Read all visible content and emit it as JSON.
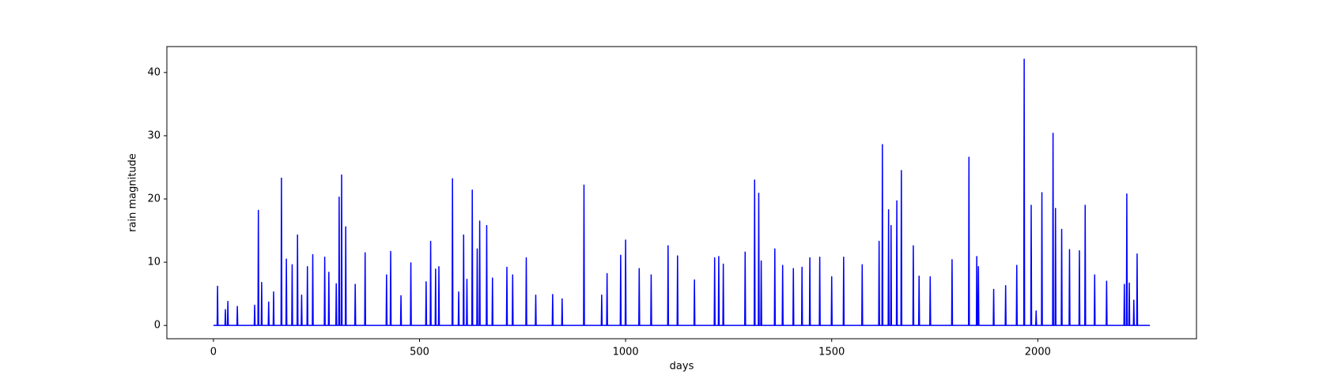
{
  "chart_data": {
    "type": "line",
    "xlabel": "days",
    "ylabel": "rain magnitude",
    "xlim": [
      -113,
      2385
    ],
    "ylim": [
      -2.1,
      44.1
    ],
    "xticks": [
      0,
      500,
      1000,
      1500,
      2000
    ],
    "yticks": [
      0,
      10,
      20,
      30,
      40
    ],
    "series": [
      {
        "color": "#0000ff",
        "x": [
          0,
          9,
          10,
          11,
          28,
          29,
          30,
          34,
          35,
          36,
          57,
          58,
          59,
          99,
          100,
          101,
          108,
          109,
          110,
          116,
          117,
          118,
          133,
          134,
          135,
          145,
          146,
          147,
          164,
          165,
          166,
          176,
          177,
          178,
          190,
          191,
          192,
          203,
          204,
          205,
          213,
          214,
          215,
          227,
          228,
          229,
          240,
          241,
          242,
          269,
          270,
          271,
          279,
          280,
          281,
          297,
          298,
          299,
          304,
          305,
          306,
          310,
          311,
          312,
          320,
          321,
          322,
          343,
          344,
          345,
          367,
          368,
          369,
          419,
          420,
          421,
          429,
          430,
          431,
          454,
          455,
          456,
          478,
          479,
          480,
          515,
          516,
          517,
          526,
          527,
          528,
          538,
          539,
          540,
          546,
          547,
          548,
          579,
          580,
          581,
          594,
          595,
          596,
          606,
          607,
          608,
          614,
          615,
          616,
          627,
          628,
          629,
          639,
          640,
          641,
          645,
          646,
          647,
          662,
          663,
          664,
          676,
          677,
          678,
          711,
          712,
          713,
          725,
          726,
          727,
          758,
          759,
          760,
          781,
          782,
          783,
          822,
          823,
          824,
          845,
          846,
          847,
          898,
          899,
          900,
          941,
          942,
          943,
          954,
          955,
          956,
          987,
          988,
          989,
          999,
          1000,
          1001,
          1032,
          1033,
          1034,
          1061,
          1062,
          1063,
          1102,
          1103,
          1104,
          1125,
          1126,
          1127,
          1166,
          1167,
          1168,
          1215,
          1216,
          1217,
          1225,
          1226,
          1227,
          1236,
          1237,
          1238,
          1289,
          1290,
          1291,
          1312,
          1313,
          1314,
          1322,
          1323,
          1324,
          1328,
          1329,
          1330,
          1361,
          1362,
          1363,
          1380,
          1381,
          1382,
          1406,
          1407,
          1408,
          1427,
          1428,
          1429,
          1446,
          1447,
          1448,
          1470,
          1471,
          1472,
          1499,
          1500,
          1501,
          1528,
          1529,
          1530,
          1573,
          1574,
          1575,
          1614,
          1615,
          1616,
          1622,
          1623,
          1624,
          1637,
          1638,
          1639,
          1643,
          1644,
          1645,
          1657,
          1658,
          1659,
          1668,
          1669,
          1670,
          1697,
          1698,
          1699,
          1711,
          1712,
          1713,
          1738,
          1739,
          1740,
          1791,
          1792,
          1793,
          1832,
          1833,
          1834,
          1851,
          1852,
          1853,
          1855,
          1856,
          1857,
          1892,
          1893,
          1894,
          1921,
          1922,
          1923,
          1948,
          1949,
          1950,
          1966,
          1967,
          1968,
          1983,
          1984,
          1985,
          1995,
          1996,
          1997,
          2009,
          2010,
          2011,
          2036,
          2037,
          2038,
          2042,
          2043,
          2044,
          2057,
          2058,
          2059,
          2076,
          2077,
          2078,
          2100,
          2101,
          2102,
          2114,
          2115,
          2116,
          2137,
          2138,
          2139,
          2166,
          2167,
          2168,
          2209,
          2210,
          2211,
          2215,
          2216,
          2217,
          2221,
          2222,
          2223,
          2232,
          2233,
          2234,
          2240,
          2241,
          2242,
          2272
        ],
        "values": [
          0,
          0,
          6.2,
          0,
          0,
          2.5,
          0,
          0,
          3.8,
          0,
          0,
          3,
          0,
          0,
          3.2,
          0,
          0,
          18.2,
          0,
          0,
          6.8,
          0,
          0,
          3.7,
          0,
          0,
          5.3,
          0,
          0,
          23.3,
          0,
          0,
          10.5,
          0,
          0,
          9.6,
          0,
          0,
          14.3,
          0,
          0,
          4.8,
          0,
          0,
          9.3,
          0,
          0,
          11.2,
          0,
          0,
          10.8,
          0,
          0,
          8.4,
          0,
          0,
          6.6,
          0,
          0,
          20.3,
          0,
          0,
          23.8,
          0,
          0,
          15.6,
          0,
          0,
          6.5,
          0,
          0,
          11.5,
          0,
          0,
          8,
          0,
          0,
          11.7,
          0,
          0,
          4.7,
          0,
          0,
          9.9,
          0,
          0,
          6.9,
          0,
          0,
          13.3,
          0,
          0,
          8.9,
          0,
          0,
          9.3,
          0,
          0,
          23.2,
          0,
          0,
          5.3,
          0,
          0,
          14.3,
          0,
          0,
          7.3,
          0,
          0,
          21.4,
          0,
          0,
          12.1,
          0,
          0,
          16.5,
          0,
          0,
          15.8,
          0,
          0,
          7.5,
          0,
          0,
          9.2,
          0,
          0,
          8,
          0,
          0,
          10.7,
          0,
          0,
          4.8,
          0,
          0,
          4.9,
          0,
          0,
          4.2,
          0,
          0,
          22.2,
          0,
          0,
          4.8,
          0,
          0,
          8.2,
          0,
          0,
          11.1,
          0,
          0,
          13.5,
          0,
          0,
          9,
          0,
          0,
          8,
          0,
          0,
          12.6,
          0,
          0,
          11,
          0,
          0,
          7.2,
          0,
          0,
          10.7,
          0,
          0,
          10.9,
          0,
          0,
          9.7,
          0,
          0,
          11.6,
          0,
          0,
          23,
          0,
          0,
          20.9,
          0,
          0,
          10.2,
          0,
          0,
          12.1,
          0,
          0,
          9.5,
          0,
          0,
          9,
          0,
          0,
          9.2,
          0,
          0,
          10.7,
          0,
          0,
          10.8,
          0,
          0,
          7.7,
          0,
          0,
          10.8,
          0,
          0,
          9.6,
          0,
          0,
          13.3,
          0,
          0,
          28.6,
          0,
          0,
          18.3,
          0,
          0,
          15.8,
          0,
          0,
          19.7,
          0,
          0,
          24.5,
          0,
          0,
          12.6,
          0,
          0,
          7.8,
          0,
          0,
          7.7,
          0,
          0,
          10.4,
          0,
          0,
          26.6,
          0,
          0,
          10.9,
          0,
          0,
          9.3,
          0,
          0,
          5.7,
          0,
          0,
          6.3,
          0,
          0,
          9.5,
          0,
          0,
          42.1,
          0,
          0,
          19,
          0,
          0,
          2.3,
          0,
          0,
          21,
          0,
          0,
          30.4,
          0,
          0,
          18.5,
          0,
          0,
          15.2,
          0,
          0,
          12,
          0,
          0,
          11.8,
          0,
          0,
          19,
          0,
          0,
          8,
          0,
          0,
          7,
          0,
          0,
          6.5,
          0,
          0,
          20.8,
          0,
          0,
          6.7,
          0,
          0,
          4,
          0,
          0,
          11.3,
          0,
          0
        ]
      }
    ]
  }
}
